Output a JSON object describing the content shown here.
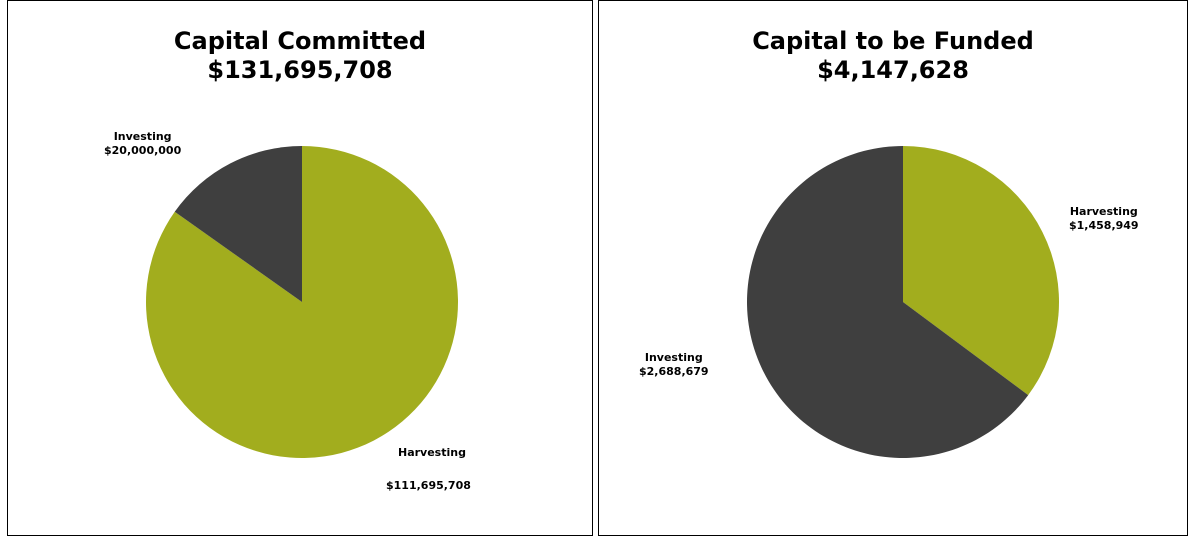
{
  "colors": {
    "Harvesting": "#a2ad1e",
    "Investing": "#3f3f3f"
  },
  "panels": [
    {
      "title": "Capital Committed",
      "total": "$131,695,708",
      "slices": [
        {
          "name": "Harvesting",
          "amount": "$111,695,708"
        },
        {
          "name": "Investing",
          "amount": "$20,000,000"
        }
      ]
    },
    {
      "title": "Capital to be Funded",
      "total": "$4,147,628",
      "slices": [
        {
          "name": "Harvesting",
          "amount": "$1,458,949"
        },
        {
          "name": "Investing",
          "amount": "$2,688,679"
        }
      ]
    }
  ],
  "chart_data": [
    {
      "type": "pie",
      "title": "Capital Committed $131,695,708",
      "categories": [
        "Harvesting",
        "Investing"
      ],
      "values": [
        111695708,
        20000000
      ]
    },
    {
      "type": "pie",
      "title": "Capital to be Funded $4,147,628",
      "categories": [
        "Harvesting",
        "Investing"
      ],
      "values": [
        1458949,
        2688679
      ]
    }
  ]
}
